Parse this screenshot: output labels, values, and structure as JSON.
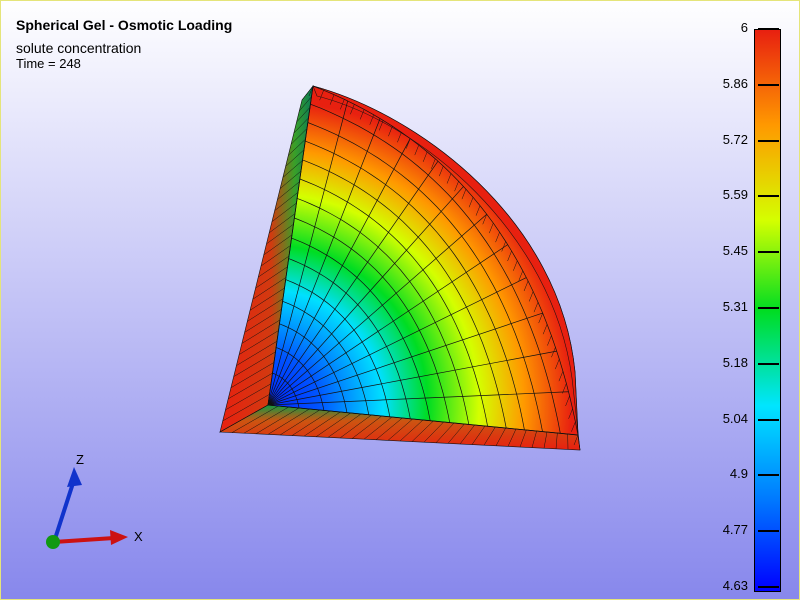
{
  "title": "Spherical Gel - Osmotic Loading",
  "field_name": "solute concentration",
  "time_label": "Time = 248",
  "colormap": {
    "min": 4.63,
    "max": 6,
    "ticks": [
      "6",
      "5.86",
      "5.72",
      "5.59",
      "5.45",
      "5.31",
      "5.18",
      "5.04",
      "4.9",
      "4.77",
      "4.63"
    ],
    "colors": [
      "#0000ff",
      "#0077ff",
      "#00e5ff",
      "#00dd22",
      "#d4ff00",
      "#ff9900",
      "#e82010"
    ]
  },
  "triad": {
    "x_label": "X",
    "z_label": "Z",
    "x_color": "#cc1111",
    "y_color": "#119911",
    "z_color": "#1133cc"
  },
  "colors": {
    "background_top": "#ffffff",
    "background_bottom": "#8787ec",
    "mesh_line": "#111111"
  }
}
